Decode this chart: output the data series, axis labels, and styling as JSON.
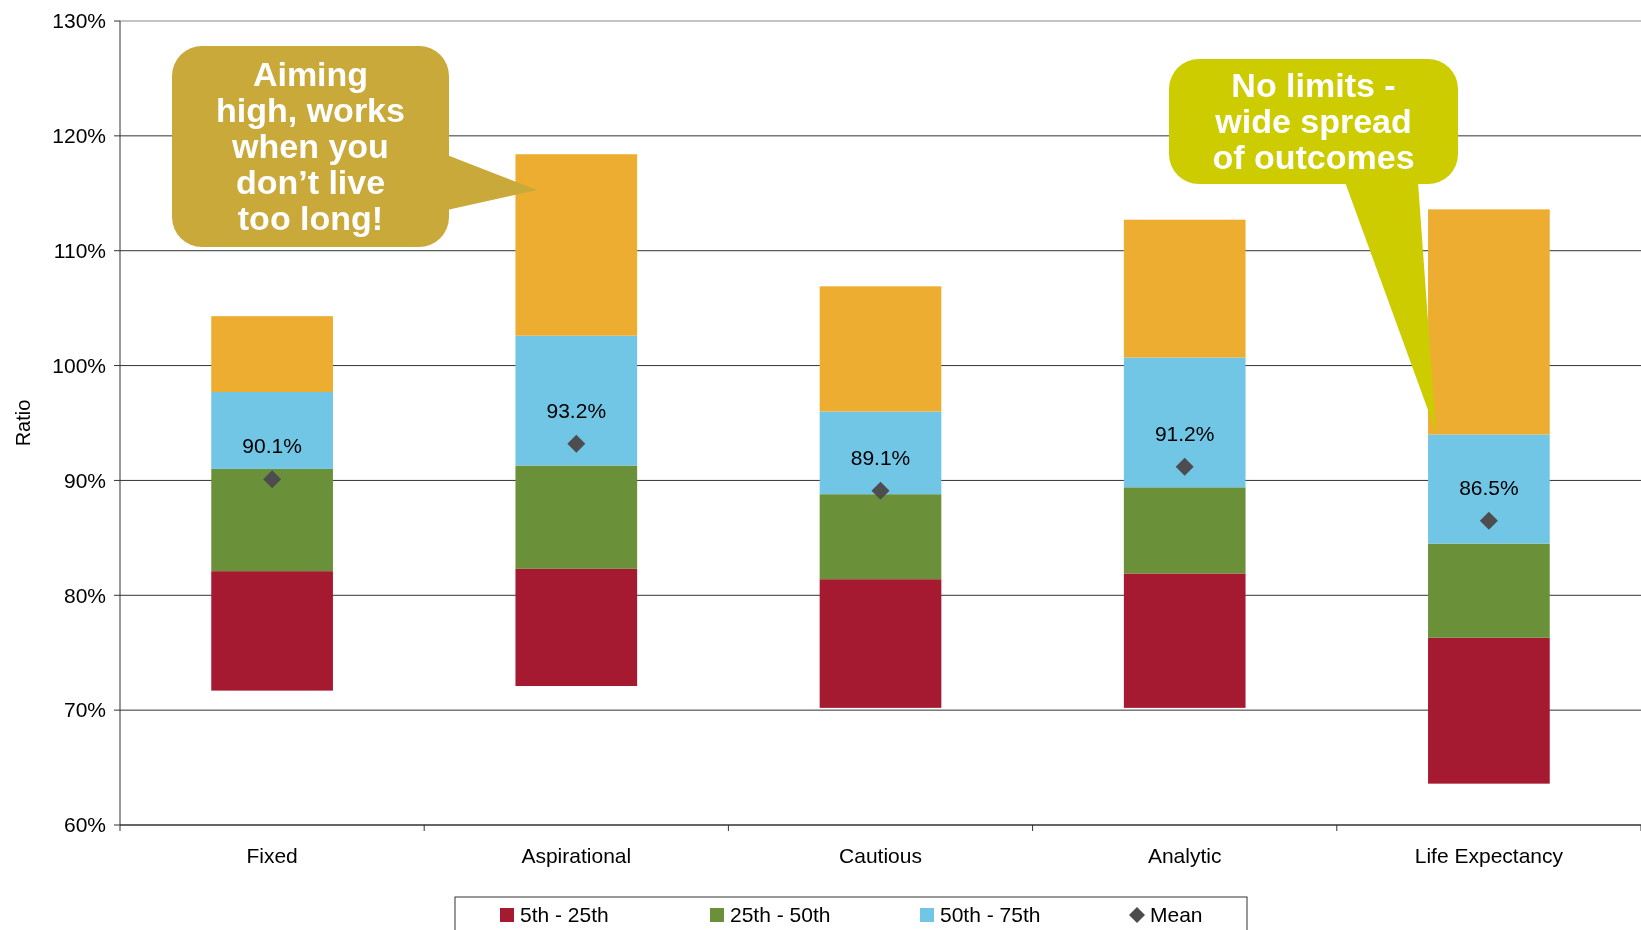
{
  "chart_data": {
    "type": "bar",
    "stacked": true,
    "ylabel": "Ratio",
    "categories": [
      "Fixed",
      "Aspirational",
      "Cautious",
      "Analytic",
      "Life Expectancy"
    ],
    "series": [
      {
        "name": "5th - 25th",
        "color": "#a51931",
        "base": [
          71.7,
          72.1,
          70.2,
          70.2,
          63.6
        ],
        "values": [
          10.4,
          10.2,
          11.2,
          11.7,
          12.7
        ]
      },
      {
        "name": "25th - 50th",
        "color": "#6a9139",
        "base": [
          82.1,
          82.3,
          81.4,
          81.9,
          76.3
        ],
        "values": [
          8.9,
          9.0,
          7.4,
          7.5,
          8.2
        ]
      },
      {
        "name": "50th - 75th",
        "color": "#71c5e5",
        "base": [
          91.0,
          91.3,
          88.8,
          89.4,
          84.5
        ],
        "values": [
          6.7,
          11.3,
          7.2,
          11.3,
          9.5
        ]
      },
      {
        "color": "#ecad30",
        "base": [
          97.7,
          102.6,
          96.0,
          100.7,
          94.0
        ],
        "values": [
          6.6,
          15.8,
          10.9,
          12.0,
          19.6
        ]
      },
      {
        "name": "Mean",
        "type": "scatter",
        "marker": "diamond",
        "color": "#4d4d4f",
        "x": [
          "Fixed",
          "Aspirational",
          "Cautious",
          "Analytic",
          "Life Expectancy"
        ],
        "values": [
          90.1,
          93.2,
          89.1,
          91.2,
          86.5
        ],
        "value_labels": [
          "90.1%",
          "93.2%",
          "89.1%",
          "91.2%",
          "86.5%"
        ]
      }
    ],
    "ylim": [
      60,
      130
    ],
    "yticks": [
      {
        "value": 60,
        "label": "60%"
      },
      {
        "value": 70,
        "label": "70%"
      },
      {
        "value": 80,
        "label": "80%"
      },
      {
        "value": 90,
        "label": "90%"
      },
      {
        "value": 100,
        "label": "100%"
      },
      {
        "value": 110,
        "label": "110%"
      },
      {
        "value": 120,
        "label": "120%"
      },
      {
        "value": 130,
        "label": "130%"
      }
    ],
    "grid": "y",
    "legend": "bottom",
    "annotations": [
      "Aiming high, works when you don’t live too long!",
      "No limits - wide spread of outcomes"
    ]
  }
}
